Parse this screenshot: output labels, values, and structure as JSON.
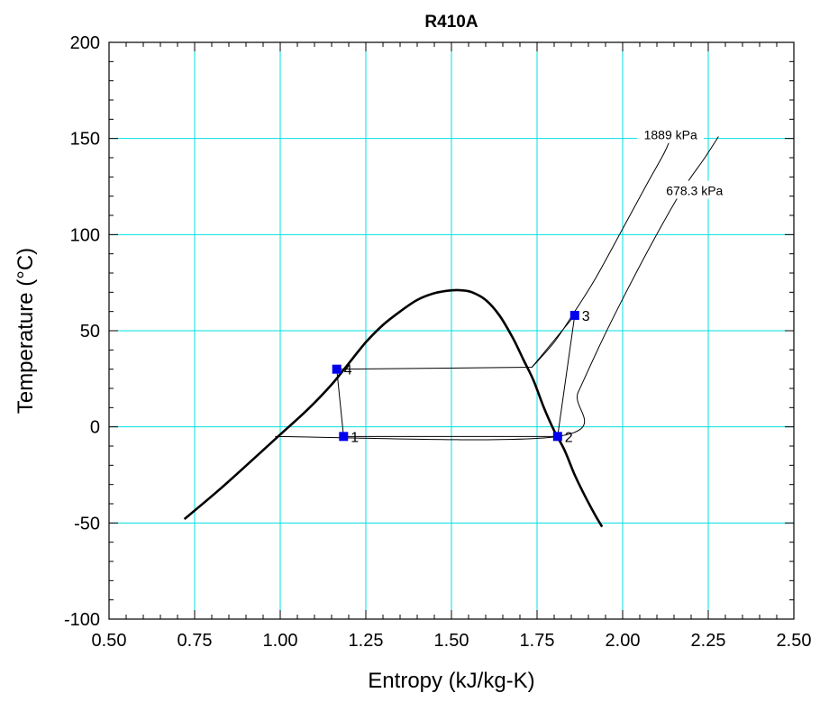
{
  "chart_data": {
    "type": "line",
    "title": "R410A",
    "xlabel": "Entropy (kJ/kg-K)",
    "ylabel": "Temperature (°C)",
    "xlim": [
      0.5,
      2.5
    ],
    "ylim": [
      -100,
      200
    ],
    "x_ticks": [
      "0.50",
      "0.75",
      "1.00",
      "1.25",
      "1.50",
      "1.75",
      "2.00",
      "2.25",
      "2.50"
    ],
    "y_ticks": [
      "-100",
      "-50",
      "0",
      "50",
      "100",
      "150",
      "200"
    ],
    "grid": true,
    "colors": {
      "grid": "#00e0e0",
      "curve": "#000000",
      "point": "#0000ee"
    },
    "series": [
      {
        "role": "saturation-dome",
        "points": [
          [
            0.72,
            -48
          ],
          [
            0.82,
            -33
          ],
          [
            0.92,
            -17
          ],
          [
            1.0,
            -4
          ],
          [
            1.08,
            9
          ],
          [
            1.15,
            22
          ],
          [
            1.2,
            33
          ],
          [
            1.25,
            44
          ],
          [
            1.3,
            53
          ],
          [
            1.35,
            60
          ],
          [
            1.4,
            66
          ],
          [
            1.45,
            69.5
          ],
          [
            1.5,
            71
          ],
          [
            1.53,
            71
          ],
          [
            1.56,
            70
          ],
          [
            1.6,
            66
          ],
          [
            1.64,
            58
          ],
          [
            1.68,
            46
          ],
          [
            1.71,
            35
          ],
          [
            1.74,
            24
          ],
          [
            1.77,
            10
          ],
          [
            1.8,
            -2
          ],
          [
            1.83,
            -12
          ],
          [
            1.86,
            -25
          ],
          [
            1.89,
            -36
          ],
          [
            1.92,
            -46
          ],
          [
            1.94,
            -52
          ]
        ]
      },
      {
        "role": "isobar",
        "points": [
          [
            1.735,
            31
          ],
          [
            1.8,
            44
          ],
          [
            1.86,
            60
          ],
          [
            1.92,
            77
          ],
          [
            2.0,
            103
          ],
          [
            2.07,
            126
          ],
          [
            2.12,
            142
          ],
          [
            2.14,
            150
          ]
        ]
      },
      {
        "role": "isobar",
        "points": [
          [
            0.985,
            -5
          ],
          [
            1.81,
            -5
          ],
          [
            1.87,
            18
          ],
          [
            1.94,
            45
          ],
          [
            2.01,
            70
          ],
          [
            2.09,
            97
          ],
          [
            2.17,
            122
          ],
          [
            2.24,
            140
          ],
          [
            2.28,
            151
          ]
        ]
      },
      {
        "role": "cycle",
        "points": [
          [
            1.185,
            -5
          ],
          [
            1.81,
            -5
          ],
          [
            1.86,
            58
          ],
          [
            1.735,
            31
          ],
          [
            1.165,
            30
          ],
          [
            1.185,
            -5
          ]
        ]
      }
    ],
    "state_points": [
      {
        "label": "1",
        "x": 1.185,
        "y": -5
      },
      {
        "label": "2",
        "x": 1.81,
        "y": -5
      },
      {
        "label": "3",
        "x": 1.86,
        "y": 58
      },
      {
        "label": "4",
        "x": 1.165,
        "y": 30
      }
    ],
    "isobar_labels": [
      {
        "text": "1889 kPa",
        "x": 2.14,
        "y": 150
      },
      {
        "text": "678.3 kPa",
        "x": 2.21,
        "y": 121
      }
    ]
  }
}
